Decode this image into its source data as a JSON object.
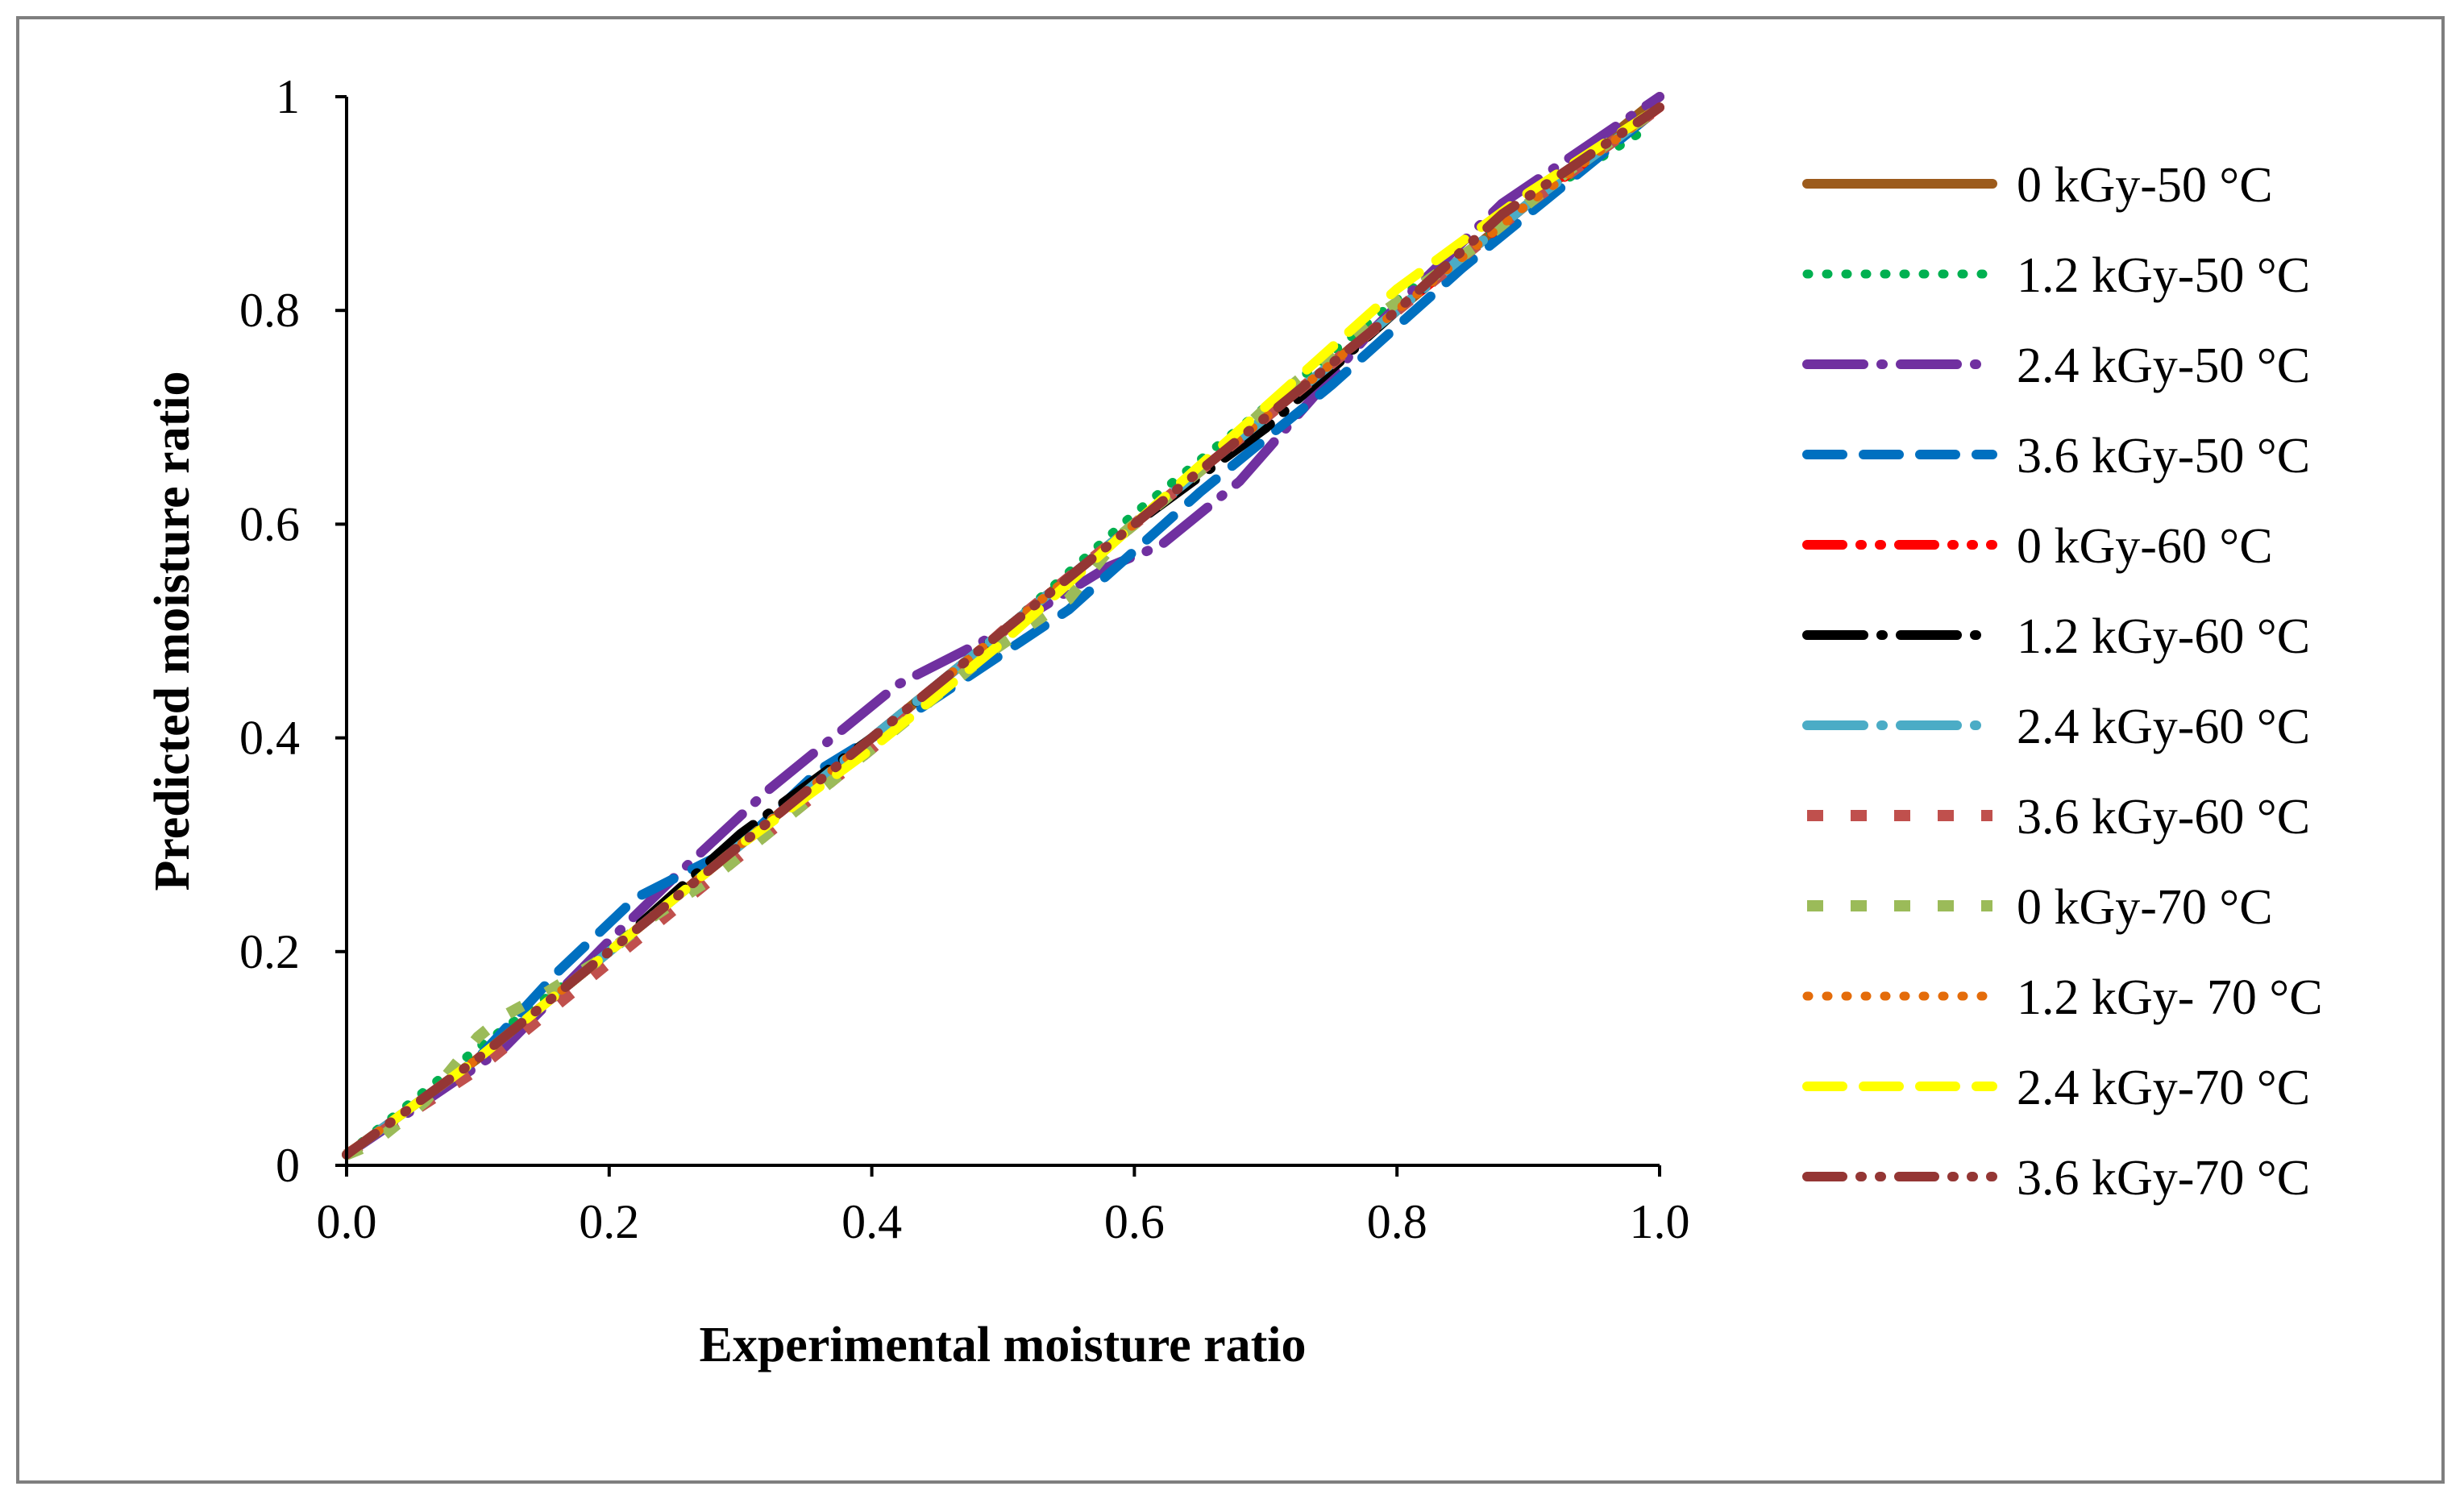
{
  "chart_data": {
    "type": "line",
    "title": "",
    "xlabel": "Experimental moisture ratio",
    "ylabel": "Predicted moisture ratio",
    "xlim": [
      0.0,
      1.0
    ],
    "ylim": [
      0,
      1
    ],
    "xticks": [
      "0.0",
      "0.2",
      "0.4",
      "0.6",
      "0.8",
      "1.0"
    ],
    "yticks": [
      "0",
      "0.2",
      "0.4",
      "0.6",
      "0.8",
      "1"
    ],
    "grid": false,
    "legend_position": "right",
    "series": [
      {
        "name": "0 kGy-50 °C",
        "color": "#9c5b1c",
        "dash": "solid",
        "x": [
          0.0,
          0.1,
          0.2,
          0.3,
          0.4,
          0.5,
          0.6,
          0.7,
          0.8,
          0.9,
          1.0
        ],
        "y": [
          0.01,
          0.1,
          0.2,
          0.3,
          0.4,
          0.5,
          0.6,
          0.7,
          0.8,
          0.9,
          1.0
        ]
      },
      {
        "name": "1.2 kGy-50 °C",
        "color": "#00b050",
        "dash": "dot",
        "x": [
          0.0,
          0.1,
          0.2,
          0.3,
          0.4,
          0.5,
          0.6,
          0.7,
          0.8,
          0.9,
          0.99
        ],
        "y": [
          0.01,
          0.11,
          0.2,
          0.3,
          0.4,
          0.5,
          0.61,
          0.71,
          0.81,
          0.9,
          0.97
        ]
      },
      {
        "name": "2.4 kGy-50 °C",
        "color": "#7030a0",
        "dash": "longdash-dot",
        "x": [
          0.0,
          0.12,
          0.2,
          0.25,
          0.32,
          0.42,
          0.5,
          0.58,
          0.62,
          0.68,
          0.78,
          0.88,
          1.0
        ],
        "y": [
          0.01,
          0.11,
          0.21,
          0.27,
          0.35,
          0.45,
          0.5,
          0.56,
          0.58,
          0.64,
          0.78,
          0.9,
          1.0
        ]
      },
      {
        "name": "3.6 kGy-50 °C",
        "color": "#0070c0",
        "dash": "dash",
        "x": [
          0.0,
          0.1,
          0.16,
          0.22,
          0.3,
          0.36,
          0.44,
          0.55,
          0.65,
          0.75,
          0.85,
          1.0
        ],
        "y": [
          0.01,
          0.1,
          0.18,
          0.25,
          0.3,
          0.37,
          0.43,
          0.52,
          0.63,
          0.73,
          0.84,
          0.99
        ]
      },
      {
        "name": "0 kGy-60 °C",
        "color": "#ff0000",
        "dash": "dash-dot-dot",
        "x": [
          0.0,
          0.1,
          0.2,
          0.3,
          0.4,
          0.5,
          0.6,
          0.7,
          0.8,
          0.9,
          1.0
        ],
        "y": [
          0.01,
          0.1,
          0.2,
          0.3,
          0.4,
          0.5,
          0.6,
          0.7,
          0.8,
          0.9,
          0.99
        ]
      },
      {
        "name": "1.2 kGy-60 °C",
        "color": "#000000",
        "dash": "longdash-dot",
        "x": [
          0.0,
          0.1,
          0.2,
          0.3,
          0.4,
          0.5,
          0.6,
          0.7,
          0.8,
          0.9,
          1.0
        ],
        "y": [
          0.01,
          0.1,
          0.2,
          0.31,
          0.4,
          0.5,
          0.6,
          0.69,
          0.8,
          0.9,
          0.99
        ]
      },
      {
        "name": "2.4 kGy-60 °C",
        "color": "#4bacc6",
        "dash": "longdash-dot",
        "x": [
          0.0,
          0.1,
          0.2,
          0.3,
          0.4,
          0.5,
          0.55,
          0.6,
          0.7,
          0.8,
          0.9,
          1.0
        ],
        "y": [
          0.01,
          0.1,
          0.2,
          0.3,
          0.4,
          0.5,
          0.55,
          0.6,
          0.7,
          0.8,
          0.9,
          0.99
        ]
      },
      {
        "name": "3.6 kGy-60 °C",
        "color": "#c0504d",
        "dash": "sparse",
        "x": [
          0.0,
          0.1,
          0.2,
          0.3,
          0.4,
          0.5,
          0.6,
          0.7,
          0.8,
          0.9,
          1.0
        ],
        "y": [
          0.01,
          0.09,
          0.19,
          0.29,
          0.39,
          0.5,
          0.6,
          0.7,
          0.8,
          0.9,
          0.99
        ]
      },
      {
        "name": "0 kGy-70 °C",
        "color": "#9bbb59",
        "dash": "sparse",
        "x": [
          0.0,
          0.02,
          0.04,
          0.06,
          0.08,
          0.1,
          0.12,
          0.15,
          0.19,
          0.23,
          0.28,
          0.33,
          0.39,
          0.44,
          0.49,
          0.55,
          0.59,
          0.65,
          0.71,
          0.78,
          0.86,
          0.93,
          1.0
        ],
        "y": [
          0.01,
          0.02,
          0.04,
          0.06,
          0.09,
          0.12,
          0.14,
          0.16,
          0.19,
          0.23,
          0.27,
          0.32,
          0.38,
          0.43,
          0.48,
          0.53,
          0.59,
          0.65,
          0.72,
          0.79,
          0.86,
          0.93,
          0.99
        ]
      },
      {
        "name": "1.2 kGy- 70 °C",
        "color": "#e46c0a",
        "dash": "dot",
        "x": [
          0.0,
          0.1,
          0.2,
          0.3,
          0.4,
          0.5,
          0.6,
          0.7,
          0.8,
          0.9,
          1.0
        ],
        "y": [
          0.01,
          0.1,
          0.2,
          0.3,
          0.4,
          0.5,
          0.6,
          0.7,
          0.8,
          0.9,
          0.99
        ]
      },
      {
        "name": "2.4 kGy-70 °C",
        "color": "#ffff00",
        "dash": "dash",
        "x": [
          0.0,
          0.1,
          0.2,
          0.3,
          0.4,
          0.5,
          0.6,
          0.7,
          0.8,
          0.9,
          1.0
        ],
        "y": [
          0.01,
          0.1,
          0.2,
          0.3,
          0.39,
          0.49,
          0.6,
          0.71,
          0.82,
          0.91,
          0.99
        ]
      },
      {
        "name": "3.6 kGy-70 °C",
        "color": "#943634",
        "dash": "dash-dot-dot",
        "x": [
          0.0,
          0.1,
          0.2,
          0.3,
          0.4,
          0.5,
          0.6,
          0.7,
          0.8,
          0.88,
          1.0
        ],
        "y": [
          0.01,
          0.1,
          0.2,
          0.3,
          0.4,
          0.5,
          0.6,
          0.7,
          0.8,
          0.89,
          0.99
        ]
      }
    ]
  }
}
